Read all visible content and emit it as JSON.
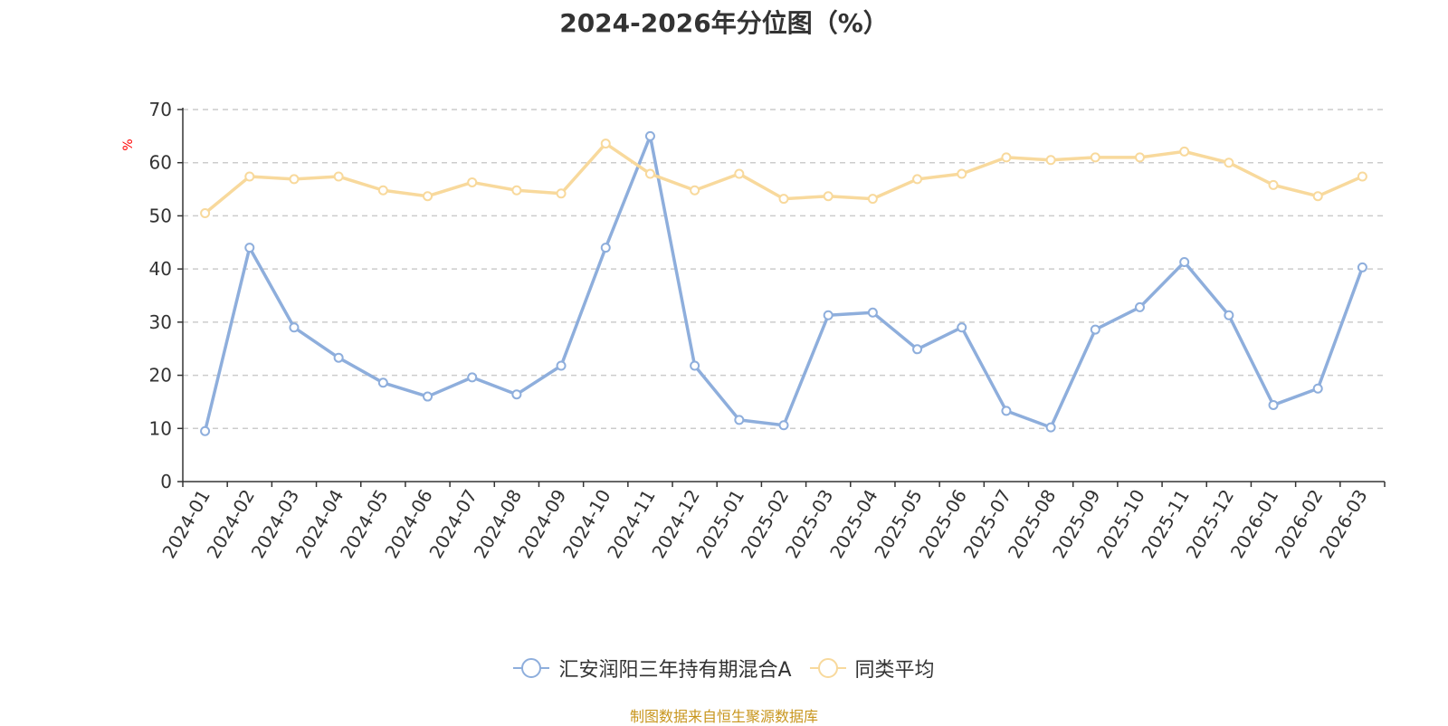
{
  "chart_data": {
    "type": "line",
    "title": "2024-2026年分位图（%）",
    "ylabel": "%",
    "ylim": [
      0,
      70
    ],
    "yticks": [
      0,
      10,
      20,
      30,
      40,
      50,
      60,
      70
    ],
    "grid": true,
    "legend_position": "bottom-center",
    "categories": [
      "2024-01",
      "2024-02",
      "2024-03",
      "2024-04",
      "2024-05",
      "2024-06",
      "2024-07",
      "2024-08",
      "2024-09",
      "2024-10",
      "2024-11",
      "2024-12",
      "2025-01",
      "2025-02",
      "2025-03",
      "2025-04",
      "2025-05",
      "2025-06",
      "2025-07",
      "2025-08",
      "2025-09",
      "2025-10",
      "2025-11",
      "2025-12",
      "2026-01",
      "2026-02",
      "2026-03"
    ],
    "series": [
      {
        "name": "汇安润阳三年持有期混合A",
        "color": "#8eaedc",
        "values": [
          9.5,
          44,
          29,
          23.3,
          18.6,
          16,
          19.6,
          16.4,
          21.8,
          44,
          65,
          21.8,
          11.6,
          10.6,
          31.3,
          31.8,
          24.9,
          29,
          13.3,
          10.2,
          28.6,
          32.8,
          41.3,
          31.3,
          14.4,
          17.5,
          40.3
        ]
      },
      {
        "name": "同类平均",
        "color": "#f8d99c",
        "values": [
          50.5,
          57.4,
          56.9,
          57.4,
          54.8,
          53.7,
          56.3,
          54.8,
          54.2,
          63.6,
          57.9,
          54.8,
          57.9,
          53.2,
          53.7,
          53.2,
          56.9,
          57.9,
          61,
          60.5,
          61,
          61,
          62.1,
          60,
          55.8,
          53.7,
          57.4
        ]
      }
    ]
  },
  "footer": {
    "source": "制图数据来自恒生聚源数据库"
  }
}
